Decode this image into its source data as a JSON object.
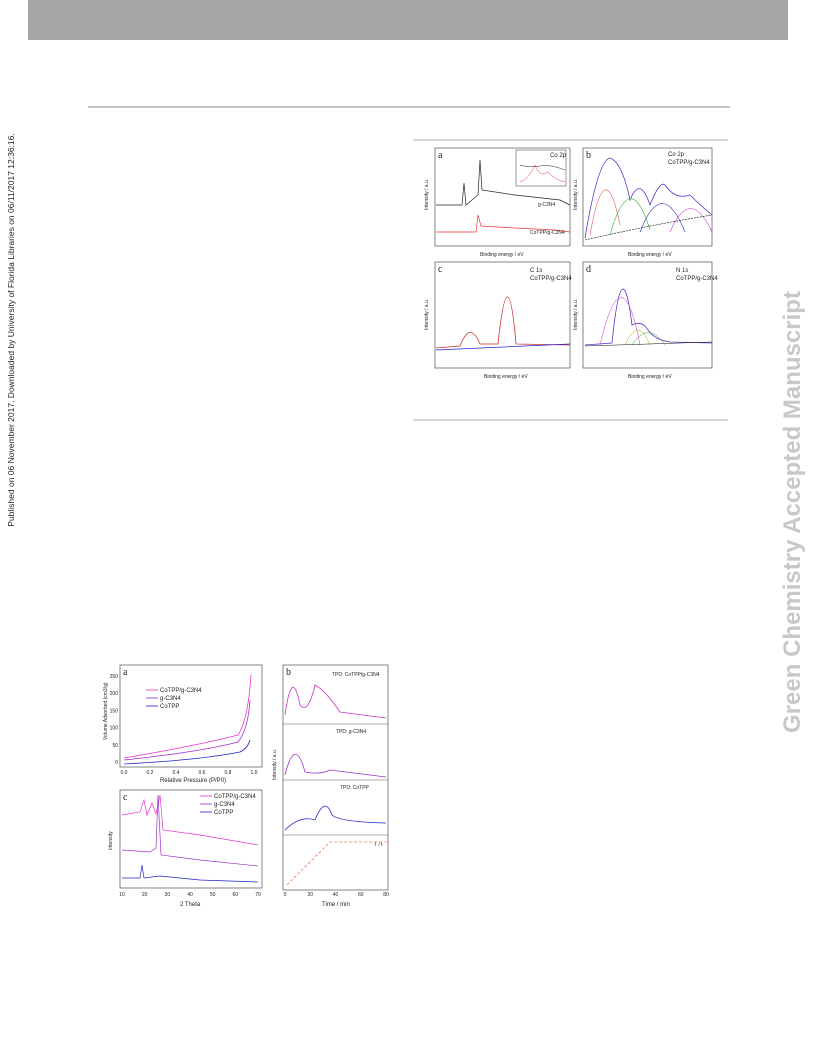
{
  "side_note": "Published on 06 November 2017. Downloaded by University of Florida Libraries on 06/11/2017 12:36:16.",
  "watermark": "Green Chemistry Accepted Manuscript",
  "figure_xps": {
    "panels": [
      {
        "label": "a",
        "title": "Co 2p",
        "x_label": "Binding energy / eV",
        "y_label": "Intensity / a.u.",
        "series": [
          "CoTPP/g-C3N4",
          "g-C3N4"
        ]
      },
      {
        "label": "b",
        "title": "Co 2p",
        "subtitle": "CoTPP/g-C3N4",
        "x_label": "Binding energy / eV",
        "y_label": "Intensity / a.u."
      },
      {
        "label": "c",
        "title": "C 1s",
        "subtitle": "CoTPP/g-C3N4",
        "x_label": "Binding energy / eV",
        "y_label": "Intensity / a.u."
      },
      {
        "label": "d",
        "title": "N 1s",
        "subtitle": "CoTPP/g-C3N4",
        "x_label": "Binding energy / eV",
        "y_label": "Intensity / a.u."
      }
    ]
  },
  "figure_bet": {
    "panel_a": {
      "label": "a",
      "legend": [
        "CoTPP/g-C3N4",
        "g-C3N4",
        "CoTPP"
      ],
      "x_label": "Relative Pressure (P/P0)",
      "y_label": "Volume Adsorbed (cm3/g)",
      "xticks": [
        "0.0",
        "0.2",
        "0.4",
        "0.6",
        "0.8",
        "1.0"
      ],
      "yticks": [
        "0",
        "50",
        "100",
        "150",
        "200",
        "250"
      ]
    },
    "panel_b": {
      "label": "b",
      "titles": [
        "TPD: CoTPP/g-C3N4",
        "TPD: g-C3N4",
        "TPD: CoTPP",
        "T / t"
      ],
      "x_label": "Time / min",
      "y_label": "Intensity / a.u.",
      "xticks": [
        "0",
        "20",
        "40",
        "60",
        "80"
      ]
    },
    "panel_c": {
      "label": "c",
      "legend": [
        "CoTPP/g-C3N4",
        "g-C3N4",
        "CoTPP"
      ],
      "x_label": "2 Theta",
      "y_label": "Intensity",
      "xticks": [
        "10",
        "20",
        "30",
        "40",
        "50",
        "60",
        "70"
      ]
    }
  }
}
